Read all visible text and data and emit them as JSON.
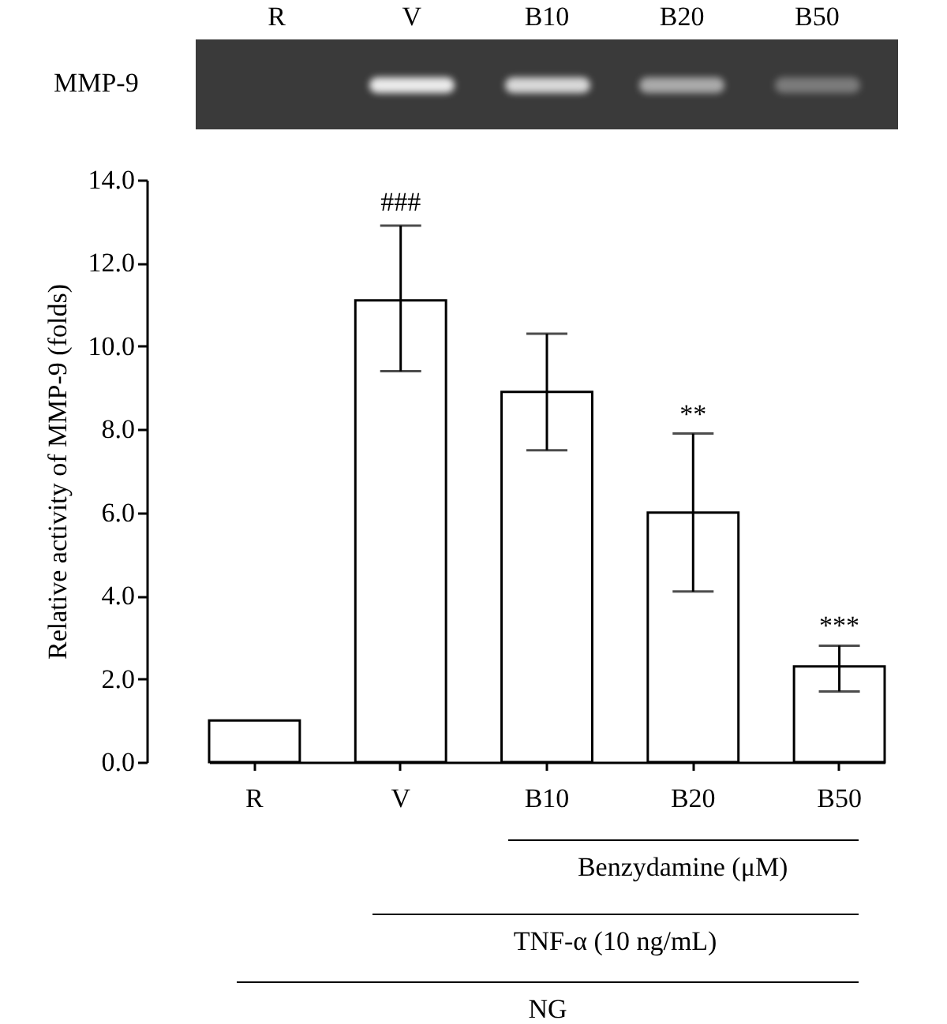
{
  "chart_data": {
    "type": "bar",
    "ylabel": "Relative activity of MMP-9 (folds)",
    "categories": [
      "R",
      "V",
      "B10",
      "B20",
      "B50"
    ],
    "values": [
      1.0,
      11.1,
      8.9,
      6.0,
      2.3
    ],
    "errors": [
      null,
      [
        9.4,
        12.9
      ],
      [
        7.5,
        10.3
      ],
      [
        4.1,
        7.9
      ],
      [
        1.7,
        2.8
      ]
    ],
    "color": "#ffffff",
    "ylim": [
      0,
      14
    ],
    "yticks": [
      {
        "value": 0,
        "label": "0.0"
      },
      {
        "value": 2,
        "label": "2.0"
      },
      {
        "value": 4,
        "label": "4.0"
      },
      {
        "value": 6,
        "label": "6.0"
      },
      {
        "value": 8,
        "label": "8.0"
      },
      {
        "value": 10,
        "label": "10.0"
      },
      {
        "value": 12,
        "label": "12.0"
      },
      {
        "value": 14,
        "label": "14.0"
      }
    ],
    "grid": false,
    "annotations": [
      {
        "text": "###",
        "x": "V",
        "y": 13.0
      },
      {
        "text": "**",
        "x": "B20",
        "y": 7.9
      },
      {
        "text": "***",
        "x": "B50",
        "y": 2.8
      },
      "MMP-9",
      "Benzydamine (μM)",
      "TNF-α (10 ng/mL)",
      "NG"
    ]
  }
}
